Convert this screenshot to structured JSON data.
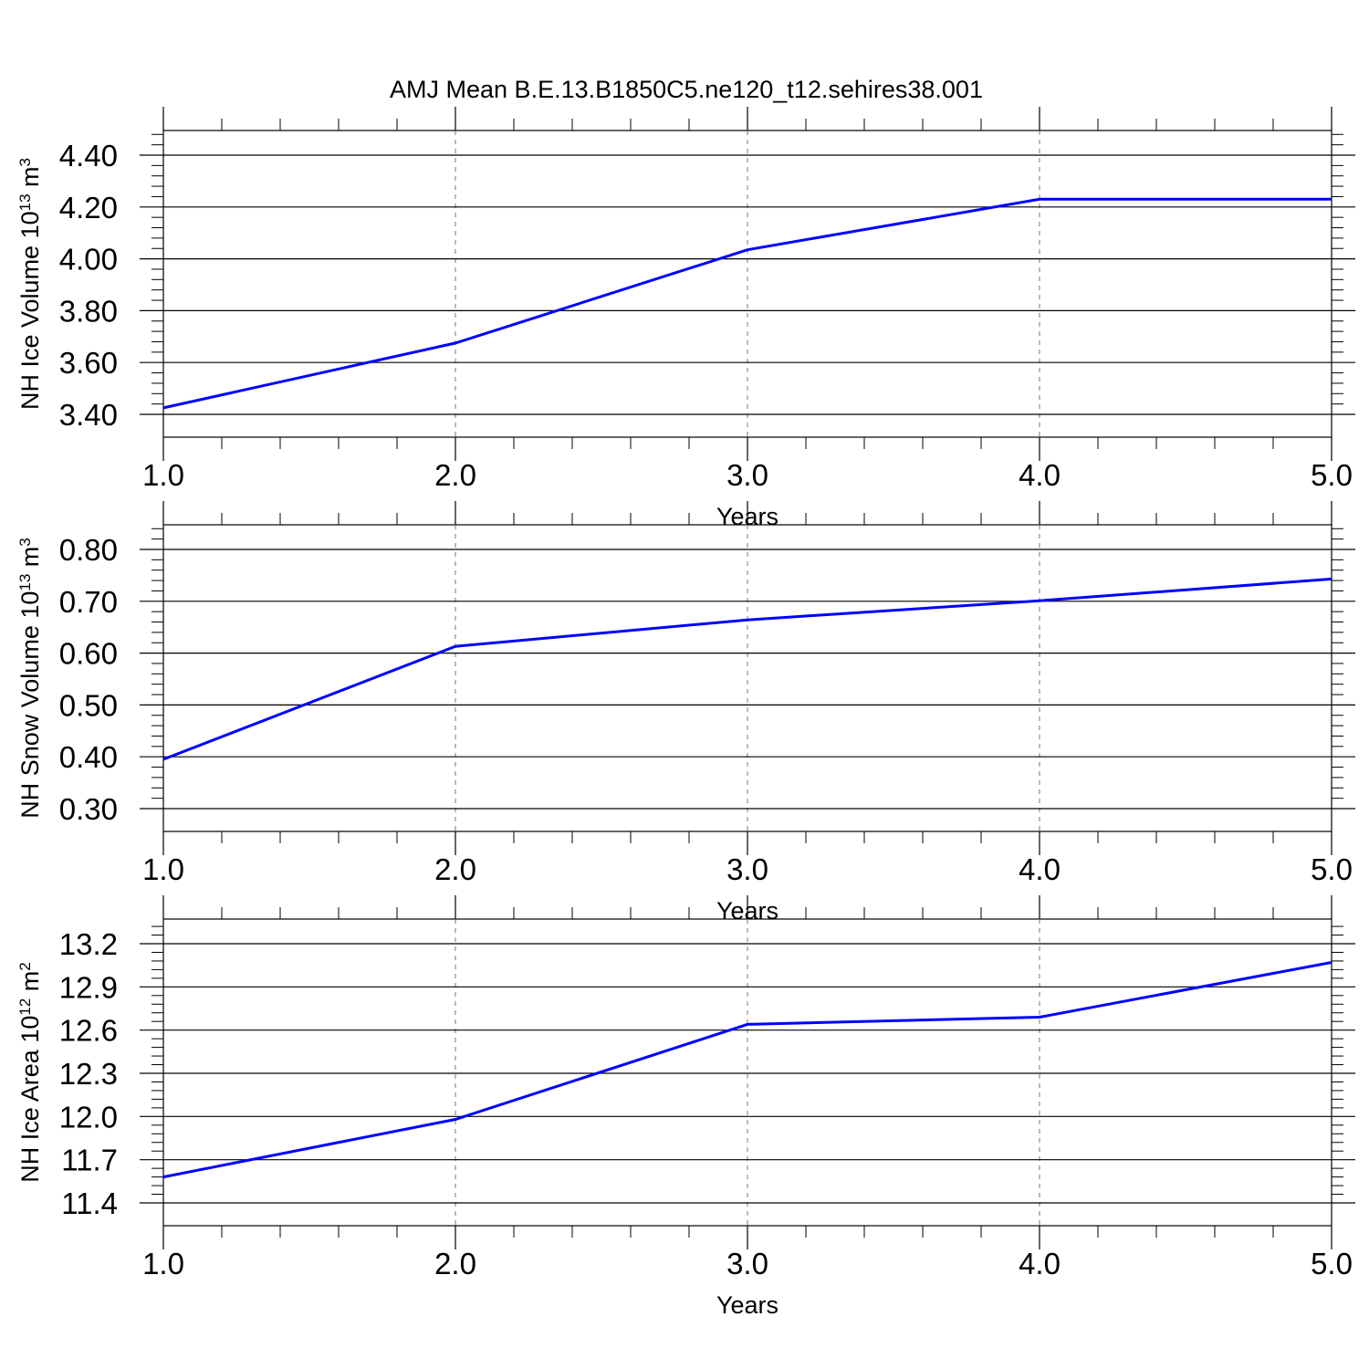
{
  "title": "AMJ Mean B.E.13.B1850C5.ne120_t12.sehires38.001",
  "chart_data": [
    {
      "type": "line",
      "xlabel": "Years",
      "ylabel": {
        "main": "NH Ice Volume 10",
        "exp": "13",
        "unit": " m",
        "unit_exp": "3"
      },
      "xlim": [
        1.0,
        5.0
      ],
      "ylim": [
        3.4,
        4.4
      ],
      "xticks": [
        "1.0",
        "2.0",
        "3.0",
        "4.0",
        "5.0"
      ],
      "yticks": [
        "3.40",
        "3.60",
        "3.80",
        "4.00",
        "4.20",
        "4.40"
      ],
      "x": [
        1.0,
        2.0,
        3.0,
        4.0,
        5.0
      ],
      "values": [
        3.425,
        3.675,
        4.035,
        4.23,
        4.23
      ],
      "grid": "vertical-dashed",
      "color": "#0000ff"
    },
    {
      "type": "line",
      "xlabel": "Years",
      "ylabel": {
        "main": "NH Snow Volume 10",
        "exp": "13",
        "unit": " m",
        "unit_exp": "3"
      },
      "xlim": [
        1.0,
        5.0
      ],
      "ylim": [
        0.3,
        0.8
      ],
      "xticks": [
        "1.0",
        "2.0",
        "3.0",
        "4.0",
        "5.0"
      ],
      "yticks": [
        "0.30",
        "0.40",
        "0.50",
        "0.60",
        "0.70",
        "0.80"
      ],
      "x": [
        1.0,
        2.0,
        3.0,
        4.0,
        5.0
      ],
      "values": [
        0.395,
        0.613,
        0.664,
        0.701,
        0.743
      ],
      "grid": "vertical-dashed",
      "color": "#0000ff"
    },
    {
      "type": "line",
      "xlabel": "Years",
      "ylabel": {
        "main": "NH Ice Area 10",
        "exp": "12",
        "unit": " m",
        "unit_exp": "2"
      },
      "xlim": [
        1.0,
        5.0
      ],
      "ylim": [
        11.4,
        13.2
      ],
      "xticks": [
        "1.0",
        "2.0",
        "3.0",
        "4.0",
        "5.0"
      ],
      "yticks": [
        "11.4",
        "11.7",
        "12.0",
        "12.3",
        "12.6",
        "12.9",
        "13.2"
      ],
      "x": [
        1.0,
        2.0,
        3.0,
        4.0,
        5.0
      ],
      "values": [
        11.58,
        11.98,
        12.64,
        12.69,
        13.07
      ],
      "grid": "vertical-dashed",
      "color": "#0000ff"
    }
  ]
}
